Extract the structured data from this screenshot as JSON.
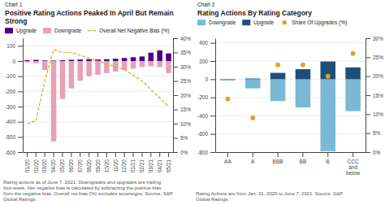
{
  "chart_data": [
    {
      "type": "bar",
      "subtitle": "Chart 1",
      "title": "Positive Rating Actions Peaked In April But Remain Strong",
      "categories": [
        "01/20",
        "02/20",
        "03/20",
        "04/20",
        "05/20",
        "06/20",
        "07/20",
        "08/20",
        "09/20",
        "10/20",
        "11/20",
        "12/20",
        "01/21",
        "02/21",
        "03/21",
        "04/21",
        "05/21"
      ],
      "series": [
        {
          "name": "Upgrade",
          "type": "bar",
          "color": "#4B0082",
          "values": [
            5,
            8,
            4,
            3,
            5,
            8,
            10,
            12,
            10,
            12,
            15,
            20,
            25,
            30,
            55,
            70,
            50
          ]
        },
        {
          "name": "Downgrade",
          "type": "bar",
          "color": "#E8A0B4",
          "values": [
            -10,
            -15,
            -60,
            -530,
            -250,
            -180,
            -130,
            -100,
            -90,
            -80,
            -70,
            -60,
            -50,
            -40,
            -35,
            -40,
            -80
          ]
        },
        {
          "name": "Overall Net Negative Bias (%)",
          "type": "line",
          "line_style": "dashed",
          "color": "#DAA520",
          "axis": "y2",
          "values": [
            10,
            11,
            25,
            36,
            35,
            35,
            34,
            33,
            32,
            31,
            30,
            29,
            27,
            25,
            22,
            19,
            16
          ]
        }
      ],
      "ylim": [
        -600,
        150
      ],
      "yticks": [
        -600,
        -500,
        -400,
        -300,
        -200,
        -100,
        0,
        100
      ],
      "y2lim": [
        0,
        40
      ],
      "y2ticks": [
        {
          "value": 0,
          "label": "0%"
        },
        {
          "value": 5,
          "label": "5%"
        },
        {
          "value": 10,
          "label": "10%"
        },
        {
          "value": 15,
          "label": "15%"
        },
        {
          "value": 20,
          "label": "20%"
        },
        {
          "value": 25,
          "label": "25%"
        },
        {
          "value": 30,
          "label": "30%"
        },
        {
          "value": 35,
          "label": "35%"
        },
        {
          "value": 40,
          "label": "40%"
        }
      ],
      "grid": true,
      "legend": "top",
      "annotations": [
        "Rating actions as of June 7, 2021. Downgrades and upgrades are trailing\nfour-week. Net negative bias is calculated by subtracting the positive bias\nfrom the negative bias. Overall net bias (%) excludes sovereigns. Source: S&P\nGlobal Ratings."
      ]
    },
    {
      "type": "bar",
      "subtitle": "Chart 2",
      "title": "Rating Actions By Rating Category",
      "categories": [
        "AA",
        "A",
        "BBB",
        "BB",
        "B",
        "CCC\nand\nbelow"
      ],
      "series": [
        {
          "name": "Downgrade",
          "type": "bar",
          "color": "#7BB8D4",
          "values": [
            -15,
            -100,
            -240,
            -310,
            -790,
            -350
          ]
        },
        {
          "name": "Upgrade",
          "type": "bar",
          "color": "#1F4E79",
          "values": [
            3,
            8,
            70,
            110,
            195,
            130
          ]
        },
        {
          "name": "Share Of Upgrades (%)",
          "type": "scatter",
          "marker": "circle",
          "color": "#DAA520",
          "axis": "y2",
          "values": [
            14,
            9,
            23,
            23,
            20,
            26
          ]
        }
      ],
      "ylim": [
        -800,
        450
      ],
      "yticks": [
        -800,
        -600,
        -400,
        -200,
        0,
        200,
        400
      ],
      "y2lim": [
        0,
        30
      ],
      "y2ticks": [
        {
          "value": 0,
          "label": "0%"
        },
        {
          "value": 5,
          "label": "5%"
        },
        {
          "value": 10,
          "label": "10%"
        },
        {
          "value": 15,
          "label": "15%"
        },
        {
          "value": 20,
          "label": "20%"
        },
        {
          "value": 25,
          "label": "25%"
        },
        {
          "value": 30,
          "label": "30%"
        }
      ],
      "grid": true,
      "legend": "top",
      "annotations": [
        "Rating Actions are from Jan. 31, 2020 to June 7, 2021. Source: S&P\nGlobal Ratings."
      ]
    }
  ]
}
